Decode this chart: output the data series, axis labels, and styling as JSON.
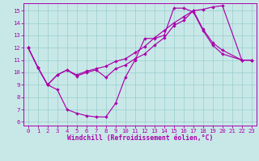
{
  "bg_color": "#c8e8e8",
  "line_color": "#aa00aa",
  "grid_color": "#99cccc",
  "ylim": [
    5.7,
    15.6
  ],
  "xlim": [
    -0.5,
    23.5
  ],
  "yticks": [
    6,
    7,
    8,
    9,
    10,
    11,
    12,
    13,
    14,
    15
  ],
  "xticks": [
    0,
    1,
    2,
    3,
    4,
    5,
    6,
    7,
    8,
    9,
    10,
    11,
    12,
    13,
    14,
    15,
    16,
    17,
    18,
    19,
    20,
    21,
    22,
    23
  ],
  "xlabel": "Windchill (Refroidissement éolien,°C)",
  "xlabel_fontsize": 5.8,
  "tick_fontsize": 5.2,
  "line1_x": [
    0,
    1,
    2,
    3,
    4,
    5,
    6,
    7,
    8,
    9,
    10,
    11,
    12,
    13,
    14,
    15,
    16,
    17,
    18,
    19,
    20,
    22,
    23
  ],
  "line1_y": [
    12,
    10.4,
    9.0,
    8.6,
    7.0,
    6.7,
    6.5,
    6.4,
    6.4,
    7.5,
    9.6,
    11.0,
    12.75,
    12.75,
    13.0,
    15.2,
    15.2,
    14.9,
    13.4,
    12.2,
    11.5,
    11.0,
    11.0
  ],
  "line2_x": [
    0,
    1,
    2,
    3,
    4,
    5,
    6,
    7,
    8,
    9,
    10,
    11,
    12,
    13,
    14,
    15,
    16,
    17,
    18,
    19,
    20,
    22,
    23
  ],
  "line2_y": [
    12,
    10.4,
    9.0,
    9.8,
    10.2,
    9.7,
    10.0,
    10.2,
    9.6,
    10.3,
    10.6,
    11.1,
    11.5,
    12.2,
    12.8,
    13.8,
    14.2,
    15.0,
    13.5,
    12.4,
    11.8,
    11.0,
    11.0
  ],
  "line3_x": [
    0,
    1,
    2,
    3,
    4,
    5,
    6,
    7,
    8,
    9,
    10,
    11,
    12,
    13,
    14,
    15,
    16,
    17,
    18,
    19,
    20,
    22,
    23
  ],
  "line3_y": [
    12,
    10.4,
    9.0,
    9.8,
    10.2,
    9.8,
    10.1,
    10.3,
    10.5,
    10.9,
    11.1,
    11.6,
    12.1,
    12.8,
    13.4,
    14.0,
    14.5,
    15.0,
    15.1,
    15.3,
    15.4,
    11.0,
    11.0
  ]
}
